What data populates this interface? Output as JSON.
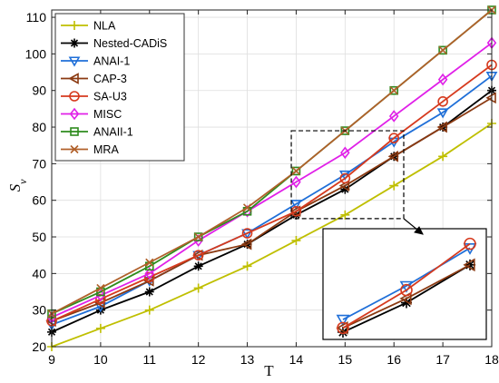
{
  "chart_data": {
    "type": "line",
    "xlabel": "T",
    "ylabel": "S",
    "ylabel_sub": "v",
    "xlim": [
      9,
      18
    ],
    "ylim": [
      20,
      112
    ],
    "x": [
      9,
      10,
      11,
      12,
      13,
      14,
      15,
      16,
      17,
      18
    ],
    "xticks": [
      9,
      10,
      11,
      12,
      13,
      14,
      15,
      16,
      17,
      18
    ],
    "yticks": [
      20,
      30,
      40,
      50,
      60,
      70,
      80,
      90,
      100,
      110
    ],
    "grid": true,
    "legend_position": "top-left",
    "series": [
      {
        "name": "NLA",
        "color": "#bfbf00",
        "marker": "plus",
        "values": [
          20,
          25,
          30,
          36,
          42,
          49,
          56,
          64,
          72,
          81
        ]
      },
      {
        "name": "Nested-CADiS",
        "color": "#000000",
        "marker": "asterisk",
        "values": [
          24,
          30,
          35,
          42,
          48,
          56,
          63,
          72,
          80,
          90
        ]
      },
      {
        "name": "ANAI-1",
        "color": "#1f6fd8",
        "marker": "triangle-down",
        "values": [
          26,
          31,
          38,
          45,
          51,
          59,
          67,
          76,
          84,
          94
        ]
      },
      {
        "name": "CAP-3",
        "color": "#8b3a12",
        "marker": "triangle-left",
        "values": [
          27,
          32,
          38,
          45,
          48,
          57,
          64,
          72,
          80,
          88
        ]
      },
      {
        "name": "SA-U3",
        "color": "#d63a1e",
        "marker": "circle",
        "values": [
          27,
          33,
          39,
          45,
          51,
          57,
          66,
          77,
          87,
          97
        ]
      },
      {
        "name": "MISC",
        "color": "#e020e8",
        "marker": "diamond",
        "values": [
          28,
          34,
          40,
          49,
          57,
          65,
          73,
          83,
          93,
          103
        ]
      },
      {
        "name": "ANAII-1",
        "color": "#2e8b1e",
        "marker": "square",
        "values": [
          29,
          35,
          42,
          50,
          57,
          68,
          79,
          90,
          101,
          112
        ]
      },
      {
        "name": "MRA",
        "color": "#b0602a",
        "marker": "x",
        "values": [
          29,
          36,
          43,
          50,
          58,
          68,
          79,
          90,
          101,
          112
        ]
      }
    ],
    "zoom_inset": {
      "region_x": [
        13.9,
        16.2
      ],
      "region_y": [
        55,
        79
      ],
      "series_shown": [
        "Nested-CADiS",
        "ANAI-1",
        "CAP-3",
        "SA-U3"
      ]
    }
  }
}
